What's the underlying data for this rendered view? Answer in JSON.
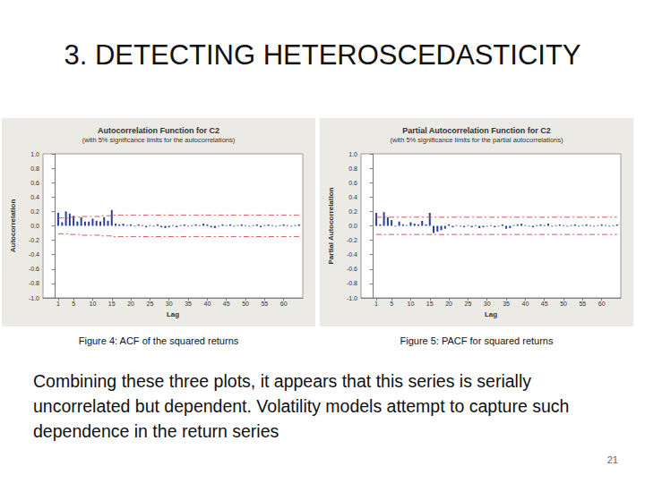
{
  "slide": {
    "title": "3. DETECTING HETEROSCEDASTICITY",
    "text": "Combining these three plots, it appears that this series is serially uncorrelated but dependent.  Volatility models attempt to capture such dependence in the return series",
    "page": "21"
  },
  "chart_data": [
    {
      "type": "bar",
      "title": "Autocorrelation Function for C2",
      "subtitle": "(with 5% significance limits for the autocorrelations)",
      "xlabel": "Lag",
      "ylabel": "Autocorrelation",
      "caption": "Figure 4: ACF of the squared returns",
      "color": "#2b3d9c",
      "x": [
        1,
        2,
        3,
        4,
        5,
        6,
        7,
        8,
        9,
        10,
        11,
        12,
        13,
        14,
        15,
        16,
        17,
        18,
        19,
        20,
        21,
        22,
        23,
        24,
        25,
        26,
        27,
        28,
        29,
        30,
        31,
        32,
        33,
        34,
        35,
        36,
        37,
        38,
        39,
        40,
        41,
        42,
        43,
        44,
        45,
        46,
        47,
        48,
        49,
        50,
        51,
        52,
        53,
        54,
        55,
        56,
        57,
        58,
        59,
        60,
        61,
        62,
        63,
        64
      ],
      "values": [
        0.18,
        0.05,
        0.2,
        0.17,
        0.14,
        0.06,
        0.12,
        0.06,
        0.06,
        0.1,
        0.07,
        0.06,
        0.12,
        0.07,
        0.22,
        0.03,
        0.02,
        0.03,
        0.01,
        0.02,
        -0.01,
        0.02,
        0.01,
        -0.02,
        0.01,
        -0.01,
        0.02,
        -0.02,
        -0.03,
        -0.02,
        0.01,
        -0.02,
        0.01,
        0.02,
        -0.01,
        0.01,
        0.02,
        0.01,
        0.03,
        0.02,
        -0.02,
        -0.03,
        -0.01,
        0.02,
        0.01,
        0.02,
        -0.01,
        0.01,
        0.02,
        0.01,
        -0.01,
        0.01,
        0.02,
        -0.02,
        0.01,
        0.02,
        0.01,
        -0.01,
        0.01,
        0.02,
        0.01,
        -0.01,
        0.01,
        0.02
      ],
      "limits": {
        "color": "#d9534f",
        "line_style": "dashdot",
        "upper": [
          0.11,
          0.11,
          0.11,
          0.12,
          0.12,
          0.12,
          0.13,
          0.13,
          0.13,
          0.13,
          0.13,
          0.13,
          0.14,
          0.14,
          0.14,
          0.15,
          0.15,
          0.15,
          0.15,
          0.15,
          0.15,
          0.15,
          0.15,
          0.15,
          0.15,
          0.15,
          0.15,
          0.15,
          0.15,
          0.15,
          0.15,
          0.15,
          0.15,
          0.15,
          0.15,
          0.15,
          0.15,
          0.15,
          0.15,
          0.15,
          0.15,
          0.15,
          0.15,
          0.15,
          0.15,
          0.15,
          0.15,
          0.15,
          0.15,
          0.15,
          0.15,
          0.15,
          0.15,
          0.15,
          0.15,
          0.15,
          0.15,
          0.15,
          0.15,
          0.15,
          0.15,
          0.15,
          0.15,
          0.15
        ],
        "lower": [
          -0.11,
          -0.11,
          -0.11,
          -0.12,
          -0.12,
          -0.12,
          -0.13,
          -0.13,
          -0.13,
          -0.13,
          -0.13,
          -0.13,
          -0.14,
          -0.14,
          -0.14,
          -0.15,
          -0.15,
          -0.15,
          -0.15,
          -0.15,
          -0.15,
          -0.15,
          -0.15,
          -0.15,
          -0.15,
          -0.15,
          -0.15,
          -0.15,
          -0.15,
          -0.15,
          -0.15,
          -0.15,
          -0.15,
          -0.15,
          -0.15,
          -0.15,
          -0.15,
          -0.15,
          -0.15,
          -0.15,
          -0.15,
          -0.15,
          -0.15,
          -0.15,
          -0.15,
          -0.15,
          -0.15,
          -0.15,
          -0.15,
          -0.15,
          -0.15,
          -0.15,
          -0.15,
          -0.15,
          -0.15,
          -0.15,
          -0.15,
          -0.15,
          -0.15,
          -0.15,
          -0.15,
          -0.15,
          -0.15,
          -0.15
        ]
      },
      "xlim": [
        -3,
        65
      ],
      "xticks": [
        1,
        5,
        10,
        15,
        20,
        25,
        30,
        35,
        40,
        45,
        50,
        55,
        60
      ],
      "ylim": [
        -1,
        1
      ],
      "yticks": [
        {
          "value": -1,
          "label": "-1.0"
        },
        -0.8,
        -0.6,
        -0.4,
        -0.2,
        {
          "value": 0,
          "label": "0.0"
        },
        0.2,
        0.4,
        0.6,
        0.8,
        {
          "value": 1,
          "label": "1.0"
        }
      ],
      "grid": false
    },
    {
      "type": "bar",
      "title": "Partial Autocorrelation Function for C2",
      "subtitle": "(with 5% significance limits for the partial autocorrelations)",
      "xlabel": "Lag",
      "ylabel": "Partial Autocorrelation",
      "caption": "Figure 5: PACF for squared returns",
      "color": "#2b3d9c",
      "x": [
        1,
        2,
        3,
        4,
        5,
        6,
        7,
        8,
        9,
        10,
        11,
        12,
        13,
        14,
        15,
        16,
        17,
        18,
        19,
        20,
        21,
        22,
        23,
        24,
        25,
        26,
        27,
        28,
        29,
        30,
        31,
        32,
        33,
        34,
        35,
        36,
        37,
        38,
        39,
        40,
        41,
        42,
        43,
        44,
        45,
        46,
        47,
        48,
        49,
        50,
        51,
        52,
        53,
        54,
        55,
        56,
        57,
        58,
        59,
        60,
        61,
        62,
        63,
        64
      ],
      "values": [
        0.18,
        0.02,
        0.19,
        0.12,
        0.08,
        -0.01,
        0.06,
        0.02,
        0.01,
        0.05,
        0.03,
        0.02,
        0.07,
        0.02,
        0.18,
        -0.1,
        -0.08,
        -0.06,
        -0.04,
        0.02,
        -0.02,
        0.01,
        -0.01,
        -0.02,
        0.01,
        -0.02,
        0.01,
        -0.03,
        -0.02,
        -0.01,
        0.01,
        -0.02,
        -0.01,
        0.02,
        -0.04,
        -0.03,
        0.01,
        0.02,
        0.03,
        0.01,
        -0.01,
        -0.02,
        0.01,
        0.02,
        0.01,
        0.03,
        -0.01,
        0.01,
        0.02,
        0.01,
        -0.01,
        0.01,
        0.02,
        -0.01,
        0.01,
        0.02,
        0.01,
        -0.01,
        0.01,
        0.02,
        0.01,
        -0.01,
        0.01,
        0.02
      ],
      "limits": {
        "color": "#d9534f",
        "line_style": "dashdot",
        "upper": 0.12,
        "lower": -0.12
      },
      "xlim": [
        -3,
        65
      ],
      "xticks": [
        1,
        5,
        10,
        15,
        20,
        25,
        30,
        35,
        40,
        45,
        50,
        55,
        60
      ],
      "ylim": [
        -1,
        1
      ],
      "yticks": [
        {
          "value": -1,
          "label": "-1.0"
        },
        -0.8,
        -0.6,
        -0.4,
        -0.2,
        {
          "value": 0,
          "label": "0.0"
        },
        0.2,
        0.4,
        0.6,
        0.8,
        {
          "value": 1,
          "label": "1.0"
        }
      ],
      "grid": false
    }
  ]
}
